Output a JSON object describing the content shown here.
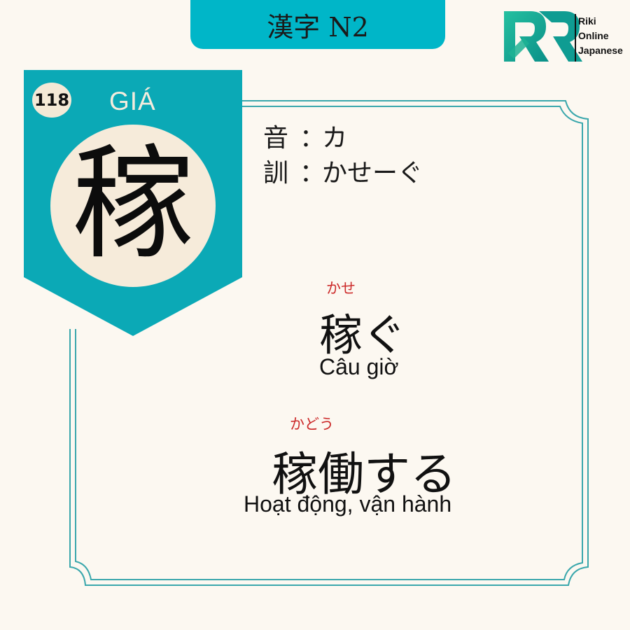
{
  "header": {
    "title": "漢字 N2"
  },
  "logo": {
    "line1": "Riki",
    "line2": "Online",
    "line3": "Japanese"
  },
  "colors": {
    "teal": "#0ba9b6",
    "cream": "#f6ebda",
    "frame": "#3aa7ac",
    "furigana": "#cc2a2a",
    "background": "#fcf8f1"
  },
  "card": {
    "number": "118",
    "han_viet": "GIÁ",
    "kanji": "稼"
  },
  "readings": {
    "on_label": "音",
    "on_value": "カ",
    "kun_label": "訓",
    "kun_value": "かせーぐ",
    "separator": "："
  },
  "vocabulary": [
    {
      "furigana": "かせ",
      "word": "稼ぐ",
      "meaning": "Câu giờ"
    },
    {
      "furigana": "かどう",
      "word": "稼働する",
      "meaning": "Hoạt động, vận hành"
    }
  ]
}
